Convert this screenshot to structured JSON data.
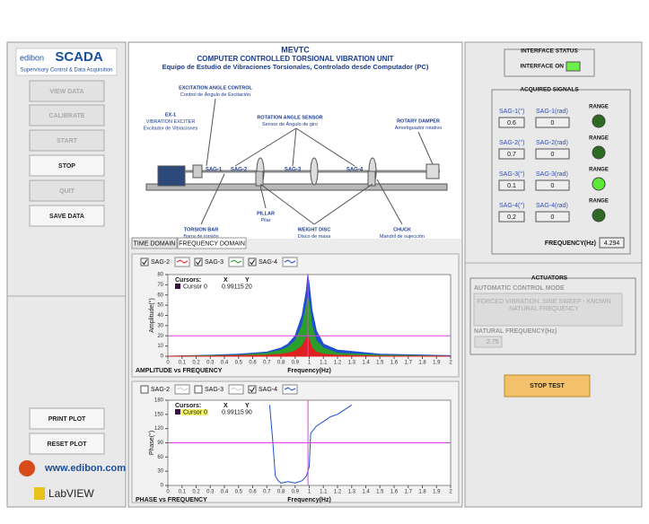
{
  "left_panel": {
    "logo": {
      "brand": "edibon",
      "product": "SCADA",
      "tagline": "Supervisory Control & Data Acquisition"
    },
    "buttons": [
      {
        "label": "VIEW DATA",
        "enabled": false
      },
      {
        "label": "CALIBRATE",
        "enabled": false
      },
      {
        "label": "START",
        "enabled": false
      },
      {
        "label": "STOP",
        "enabled": true
      },
      {
        "label": "QUIT",
        "enabled": false
      },
      {
        "label": "SAVE DATA",
        "enabled": true
      }
    ],
    "plot_buttons": [
      "PRINT PLOT",
      "RESET PLOT"
    ],
    "footer": {
      "website": "www.edibon.com",
      "software": "LabVIEW"
    }
  },
  "header": {
    "code": "MEVTC",
    "title": "COMPUTER CONTROLLED TORSIONAL VIBRATION UNIT",
    "subtitle": "Equipo de Estudio de Vibraciones Torsionales, Controlado desde Computador (PC)"
  },
  "diagram": {
    "labels": [
      {
        "lines": [
          "EXCITATION ANGLE CONTROL",
          "Control de Ángulo de Excitación"
        ]
      },
      {
        "lines": [
          "EX-1",
          "VIBRATION EXCITER",
          "Excitador de Vibraciones"
        ]
      },
      {
        "lines": [
          "ROTATION ANGLE SENSOR",
          "Sensor de Ángulo de giro"
        ]
      },
      {
        "lines": [
          "ROTARY DAMPER",
          "Amortiguador rotativo"
        ]
      },
      {
        "lines": [
          "TORSION BAR",
          "Barra de torsión"
        ]
      },
      {
        "lines": [
          "PILLAR",
          "Pilar"
        ]
      },
      {
        "lines": [
          "WEIGHT DISC",
          "Disco de masa"
        ]
      },
      {
        "lines": [
          "CHUCK",
          "Mandril de sujección"
        ]
      }
    ],
    "sensors": [
      "SAG-1",
      "SAG-2",
      "SAG-3",
      "SAG-4"
    ]
  },
  "tabs": [
    "TIME DOMAIN",
    "FREQUENCY DOMAIN"
  ],
  "active_tab": 1,
  "plots": [
    {
      "style": "area",
      "caption": "AMPLITUDE vs FREQUENCY",
      "xlabel": "Frequency(Hz)",
      "ylabel": "Amplitude(°)",
      "xlim": [
        0,
        2
      ],
      "xticks": [
        0,
        0.1,
        0.2,
        0.3,
        0.4,
        0.5,
        0.6,
        0.7,
        0.8,
        0.9,
        1,
        1.1,
        1.2,
        1.3,
        1.4,
        1.5,
        1.6,
        1.7,
        1.8,
        1.9,
        2
      ],
      "ylim": [
        0,
        80
      ],
      "yticks": [
        0,
        10,
        20,
        30,
        40,
        50,
        60,
        70,
        80
      ],
      "cursor": {
        "title": "Cursors:",
        "name": "Cursor 0",
        "x_label": "X",
        "y_label": "Y",
        "x": 0.99115,
        "y": 20,
        "color": "#e040e0",
        "highlight": false
      },
      "x": [
        0,
        0.3,
        0.5,
        0.7,
        0.8,
        0.85,
        0.9,
        0.95,
        0.98,
        0.99,
        1.0,
        1.02,
        1.05,
        1.1,
        1.2,
        1.5,
        2
      ],
      "series": [
        {
          "name": "SAG-4",
          "color": "#1f4fd0",
          "checked": true,
          "values": [
            0,
            1,
            2,
            4,
            8,
            12,
            20,
            40,
            65,
            80,
            70,
            45,
            25,
            12,
            6,
            2,
            0.5
          ]
        },
        {
          "name": "SAG-3",
          "color": "#2aa02a",
          "checked": true,
          "values": [
            0,
            0.5,
            1,
            3,
            6,
            9,
            15,
            30,
            50,
            58,
            52,
            30,
            15,
            8,
            3,
            1,
            0
          ]
        },
        {
          "name": "SAG-2",
          "color": "#e02020",
          "checked": true,
          "values": [
            0,
            0,
            0.5,
            1,
            2,
            3,
            5,
            10,
            18,
            20,
            16,
            8,
            4,
            2,
            1,
            0,
            0
          ]
        }
      ]
    },
    {
      "style": "line",
      "caption": "PHASE vs FREQUENCY",
      "xlabel": "Frequency(Hz)",
      "ylabel": "Phase(°)",
      "xlim": [
        0,
        2
      ],
      "xticks": [
        0,
        0.1,
        0.2,
        0.3,
        0.4,
        0.5,
        0.6,
        0.7,
        0.8,
        0.9,
        1,
        1.1,
        1.2,
        1.3,
        1.4,
        1.5,
        1.6,
        1.7,
        1.8,
        1.9,
        2
      ],
      "ylim": [
        0,
        180
      ],
      "yticks": [
        0,
        30,
        60,
        90,
        120,
        150,
        180
      ],
      "cursor": {
        "title": "Cursors:",
        "name": "Cursor 0",
        "x_label": "X",
        "y_label": "Y",
        "x": 0.99115,
        "y": 90,
        "color": "#e040e0",
        "highlight": true
      },
      "x": [
        0.72,
        0.74,
        0.76,
        0.78,
        0.8,
        0.85,
        0.9,
        0.95,
        0.98,
        1.0,
        1.01,
        1.05,
        1.1,
        1.15,
        1.2,
        1.25,
        1.3
      ],
      "series": [
        {
          "name": "SAG-2",
          "color": "#e02020",
          "checked": false
        },
        {
          "name": "SAG-3",
          "color": "#2aa02a",
          "checked": false
        },
        {
          "name": "SAG-4",
          "color": "#1f4fd0",
          "checked": true,
          "values": [
            170,
            100,
            20,
            10,
            5,
            8,
            5,
            10,
            20,
            40,
            110,
            125,
            135,
            145,
            150,
            160,
            170
          ]
        }
      ]
    }
  ],
  "interface_status": {
    "title": "INTERFACE STATUS",
    "label": "INTERFACE ON",
    "led_on": true
  },
  "acquired_signals": {
    "title": "ACQUIRED SIGNALS",
    "range_label": "RANGE",
    "rows": [
      {
        "deg_label": "SAG-1(°)",
        "deg_value": 0.6,
        "rad_label": "SAG-1(rad)",
        "rad_value": 0,
        "range_on": false
      },
      {
        "deg_label": "SAG-2(°)",
        "deg_value": 0.7,
        "rad_label": "SAG-2(rad)",
        "rad_value": 0,
        "range_on": false
      },
      {
        "deg_label": "SAG-3(°)",
        "deg_value": 0.1,
        "rad_label": "SAG-3(rad)",
        "rad_value": 0,
        "range_on": true
      },
      {
        "deg_label": "SAG-4(°)",
        "deg_value": 0.2,
        "rad_label": "SAG-4(rad)",
        "rad_value": 0,
        "range_on": false
      }
    ],
    "frequency_label": "FREQUENCY(Hz)",
    "frequency": 4.294
  },
  "actuators": {
    "title": "ACTUATORS",
    "mode_label": "AUTOMATIC CONTROL MODE",
    "mode_lines": [
      "FORCED VIBRATION. SINE SWEEP - KNOWN",
      "NATURAL FREQUENCY"
    ],
    "natural_frequency_label": "NATURAL FREQUENCY(Hz)",
    "natural_frequency": 2.75,
    "stop_button": "STOP TEST"
  }
}
